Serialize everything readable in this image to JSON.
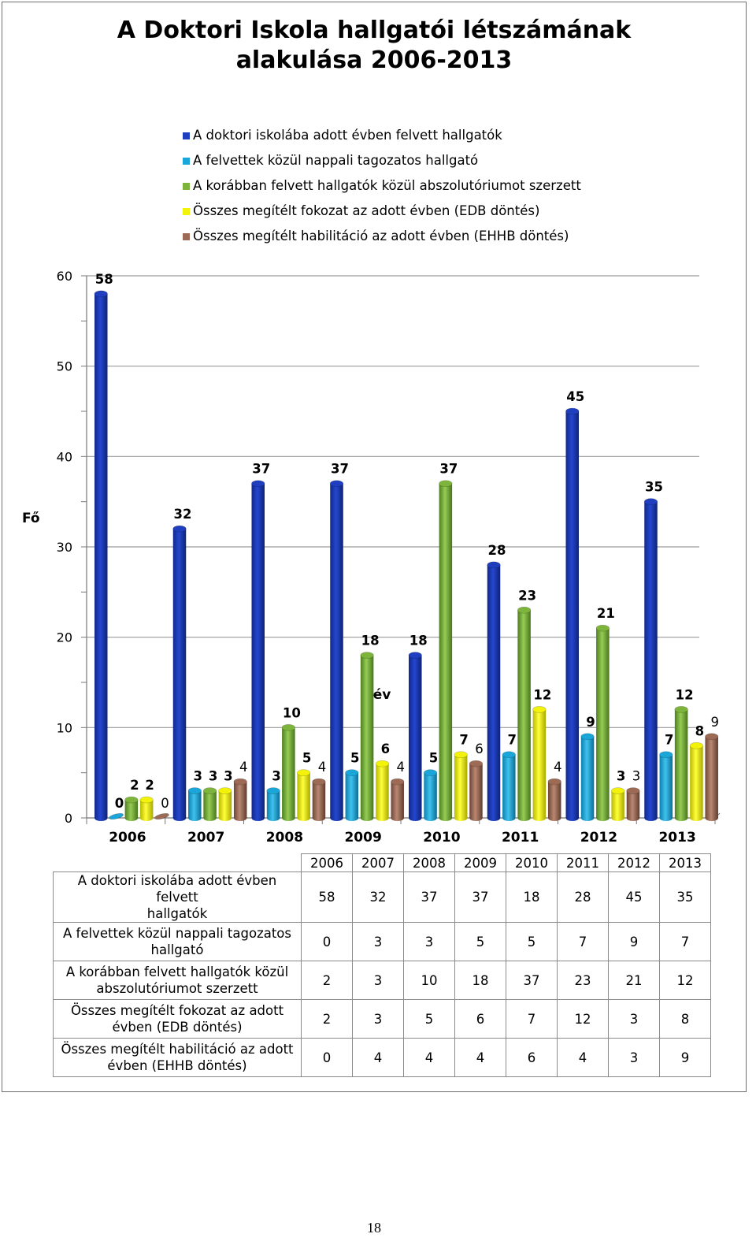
{
  "chart_data": {
    "type": "bar",
    "title": "A Doktori Iskola hallgatói létszámának alakulása 2006-2013",
    "title_lines": [
      "A Doktori Iskola hallgatói létszámának",
      "alakulása 2006-2013"
    ],
    "ylabel": "Fő",
    "xlabel": "év",
    "ylim": [
      0,
      60
    ],
    "yticks": [
      0,
      10,
      20,
      30,
      40,
      50,
      60
    ],
    "grid": true,
    "legend_position": "top",
    "categories": [
      "2006",
      "2007",
      "2008",
      "2009",
      "2010",
      "2011",
      "2012",
      "2013"
    ],
    "series": [
      {
        "name": "A doktori iskolába adott évben felvett hallgatók",
        "color": "#1f3fbf",
        "values": [
          58,
          32,
          37,
          37,
          18,
          28,
          45,
          35
        ]
      },
      {
        "name": "A felvettek közül nappali tagozatos hallgató",
        "color": "#1aa6d8",
        "values": [
          0,
          3,
          3,
          5,
          5,
          7,
          9,
          7
        ]
      },
      {
        "name": "A korábban felvett hallgatók közül abszolutóriumot szerzett",
        "color": "#7db53c",
        "values": [
          2,
          3,
          10,
          18,
          37,
          23,
          21,
          12
        ]
      },
      {
        "name": "Összes megítélt fokozat az adott évben (EDB döntés)",
        "color": "#f2f20a",
        "values": [
          2,
          3,
          5,
          6,
          7,
          12,
          3,
          8
        ]
      },
      {
        "name": "Összes megítélt habilitáció az adott évben (EHHB döntés)",
        "color": "#9c6a55",
        "values": [
          0,
          4,
          4,
          4,
          6,
          4,
          3,
          9
        ]
      }
    ]
  },
  "table": {
    "row_labels": [
      [
        "A doktori iskolába adott évben felvett",
        "hallgatók"
      ],
      [
        "A felvettek közül nappali tagozatos",
        "hallgató"
      ],
      [
        "A korábban felvett hallgatók közül",
        "abszolutóriumot szerzett"
      ],
      [
        "Összes megítélt fokozat az adott",
        "évben (EDB döntés)"
      ],
      [
        "Összes megítélt habilitáció az adott",
        "évben (EHHB döntés)"
      ]
    ]
  },
  "page_number": "18"
}
